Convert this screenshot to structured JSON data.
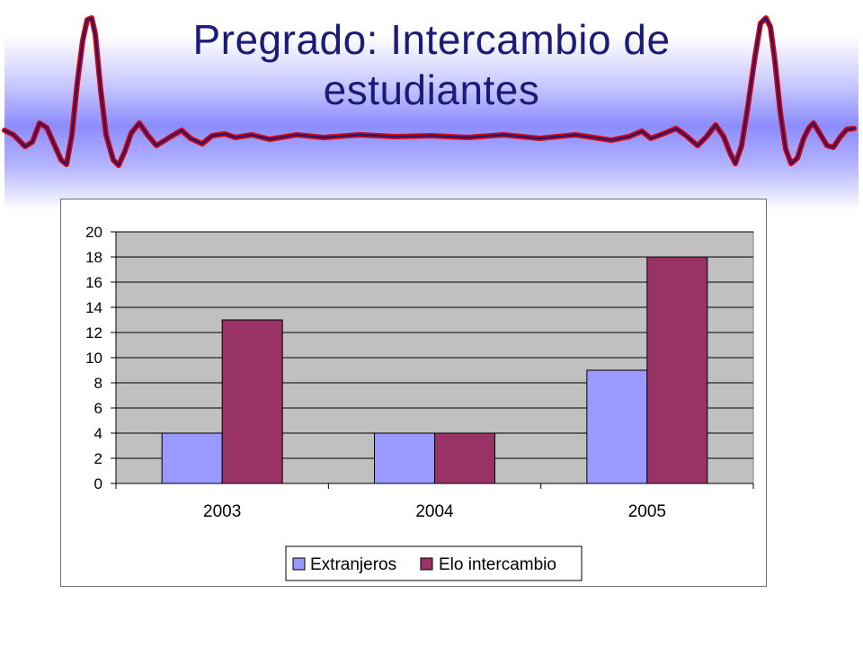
{
  "slide": {
    "title": "Pregrado: Intercambio de estudiantes",
    "title_line1": "Pregrado: Intercambio de",
    "title_line2": "estudiantes"
  },
  "colors": {
    "title": "#1c1c78",
    "header_band": "#8c8cff",
    "ecg_outer": "#e00000",
    "ecg_inner": "#1c1c78",
    "plot_area": "#c0c0c0",
    "series_1": "#9999ff",
    "series_2": "#993366"
  },
  "icons": {
    "header_decoration": "ecg-heartbeat-line-icon"
  },
  "chart_data": {
    "type": "bar",
    "categories": [
      "2003",
      "2004",
      "2005"
    ],
    "series": [
      {
        "name": "Extranjeros",
        "values": [
          4,
          4,
          9
        ]
      },
      {
        "name": "Elo intercambio",
        "values": [
          13,
          4,
          18
        ]
      }
    ],
    "ylim": [
      0,
      20
    ],
    "yticks": [
      0,
      2,
      4,
      6,
      8,
      10,
      12,
      14,
      16,
      18,
      20
    ],
    "grid": true,
    "legend_position": "bottom"
  }
}
